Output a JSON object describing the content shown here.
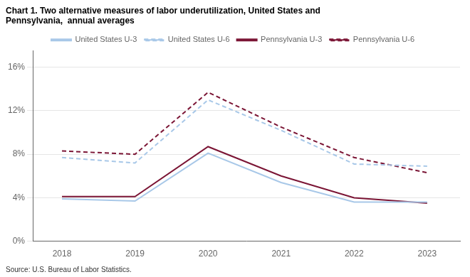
{
  "chart_data": {
    "type": "line",
    "title": [
      "Chart 1. Two alternative measures of labor underutilization, United States and",
      "Pennsylvania,  annual averages"
    ],
    "annotations": [
      "Source: U.S. Bureau of Labor Statistics."
    ],
    "x": [
      2018,
      2019,
      2020,
      2021,
      2022,
      2023
    ],
    "series": [
      {
        "name": "United States U-3",
        "color": "#a8c8e8",
        "line_style": "solid",
        "values": [
          3.9,
          3.7,
          8.1,
          5.4,
          3.6,
          3.6
        ]
      },
      {
        "name": "United States U-6",
        "color": "#a8c8e8",
        "line_style": "dashed",
        "values": [
          7.7,
          7.2,
          13.0,
          10.2,
          7.1,
          6.9
        ]
      },
      {
        "name": "Pennsylvania U-3",
        "color": "#7b1535",
        "line_style": "solid",
        "values": [
          4.1,
          4.1,
          8.7,
          6.0,
          4.0,
          3.5
        ]
      },
      {
        "name": "Pennsylvania U-6",
        "color": "#7b1535",
        "line_style": "dashed",
        "values": [
          8.3,
          8.0,
          13.7,
          10.5,
          7.7,
          6.3
        ]
      }
    ],
    "xlim": [
      2017.6,
      2023.45
    ],
    "xticks": [
      2018,
      2019,
      2020,
      2021,
      2022,
      2023
    ],
    "ylim": [
      0,
      17.5
    ],
    "yticks": [
      {
        "value": 0,
        "label": "0%"
      },
      {
        "value": 4,
        "label": "4%"
      },
      {
        "value": 8,
        "label": "8%"
      },
      {
        "value": 12,
        "label": "12%"
      },
      {
        "value": 16,
        "label": "16%"
      }
    ],
    "grid": "y",
    "legend": "top"
  }
}
